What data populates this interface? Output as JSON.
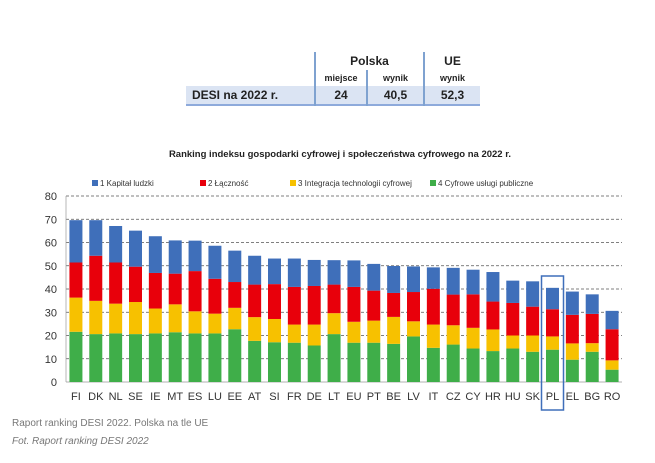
{
  "table": {
    "group_polska": "Polska",
    "group_ue": "UE",
    "col_miejsce": "miejsce",
    "col_wynik_pl": "wynik",
    "col_wynik_ue": "wynik",
    "row_label": "DESI na 2022 r.",
    "pl_miejsce": "24",
    "pl_wynik": "40,5",
    "ue_wynik": "52,3"
  },
  "chart_data": {
    "type": "bar",
    "stacked": true,
    "title": "Ranking indeksu gospodarki cyfrowej i społeczeństwa cyfrowego na 2022 r.",
    "ylim": [
      0,
      80
    ],
    "yticks": [
      "0",
      "10",
      "20",
      "30",
      "40",
      "50",
      "60",
      "70",
      "80"
    ],
    "grid": true,
    "legend_position": "top",
    "highlight": "PL",
    "categories": [
      "FI",
      "DK",
      "NL",
      "SE",
      "IE",
      "MT",
      "ES",
      "LU",
      "EE",
      "AT",
      "SI",
      "FR",
      "DE",
      "LT",
      "EU",
      "PT",
      "BE",
      "LV",
      "IT",
      "CZ",
      "CY",
      "HR",
      "HU",
      "SK",
      "PL",
      "EL",
      "BG",
      "RO"
    ],
    "series": [
      {
        "name": "4 Cyfrowe usługi publiczne",
        "color": "#3fae49",
        "values": [
          21.6,
          20.6,
          20.9,
          20.6,
          20.9,
          21.4,
          20.9,
          20.9,
          22.7,
          17.7,
          17.1,
          16.9,
          15.7,
          20.6,
          16.9,
          16.9,
          16.4,
          19.6,
          14.7,
          16.1,
          14.4,
          13.3,
          14.4,
          13.0,
          13.9,
          9.6,
          13.0,
          5.3
        ]
      },
      {
        "name": "3 Integracja technologii cyfrowej",
        "color": "#f7c100",
        "values": [
          14.7,
          14.3,
          12.8,
          13.8,
          10.7,
          12.0,
          9.5,
          8.5,
          9.2,
          10.2,
          10.0,
          7.8,
          9.0,
          9.0,
          9.0,
          9.5,
          11.6,
          6.5,
          10.0,
          8.3,
          8.9,
          9.3,
          5.6,
          7.0,
          5.7,
          7.0,
          3.7,
          4.0
        ]
      },
      {
        "name": "2 Łączność",
        "color": "#e8000b",
        "values": [
          15.1,
          19.4,
          17.7,
          15.2,
          15.3,
          13.2,
          17.3,
          15.0,
          11.1,
          14.0,
          15.0,
          16.2,
          16.6,
          12.3,
          15.0,
          12.9,
          10.3,
          12.6,
          15.4,
          13.2,
          14.4,
          12.0,
          14.0,
          12.4,
          11.7,
          12.3,
          12.6,
          13.4
        ]
      },
      {
        "name": "1 Kapitał ludzki",
        "color": "#3f6fba",
        "values": [
          18.2,
          15.3,
          15.7,
          15.5,
          15.8,
          14.3,
          13.1,
          14.2,
          13.5,
          12.4,
          11.0,
          12.2,
          11.2,
          10.5,
          11.4,
          11.5,
          11.6,
          11.0,
          9.2,
          11.5,
          10.6,
          12.7,
          9.6,
          10.9,
          9.2,
          10.0,
          8.4,
          7.9
        ]
      }
    ],
    "legend_order": [
      "1 Kapitał ludzki",
      "2 Łączność",
      "3 Integracja technologii cyfrowej",
      "4 Cyfrowe usługi publiczne"
    ]
  },
  "caption": {
    "text": "Raport ranking DESI 2022. Polska na tle UE",
    "source": "Fot. Raport ranking DESI 2022"
  }
}
